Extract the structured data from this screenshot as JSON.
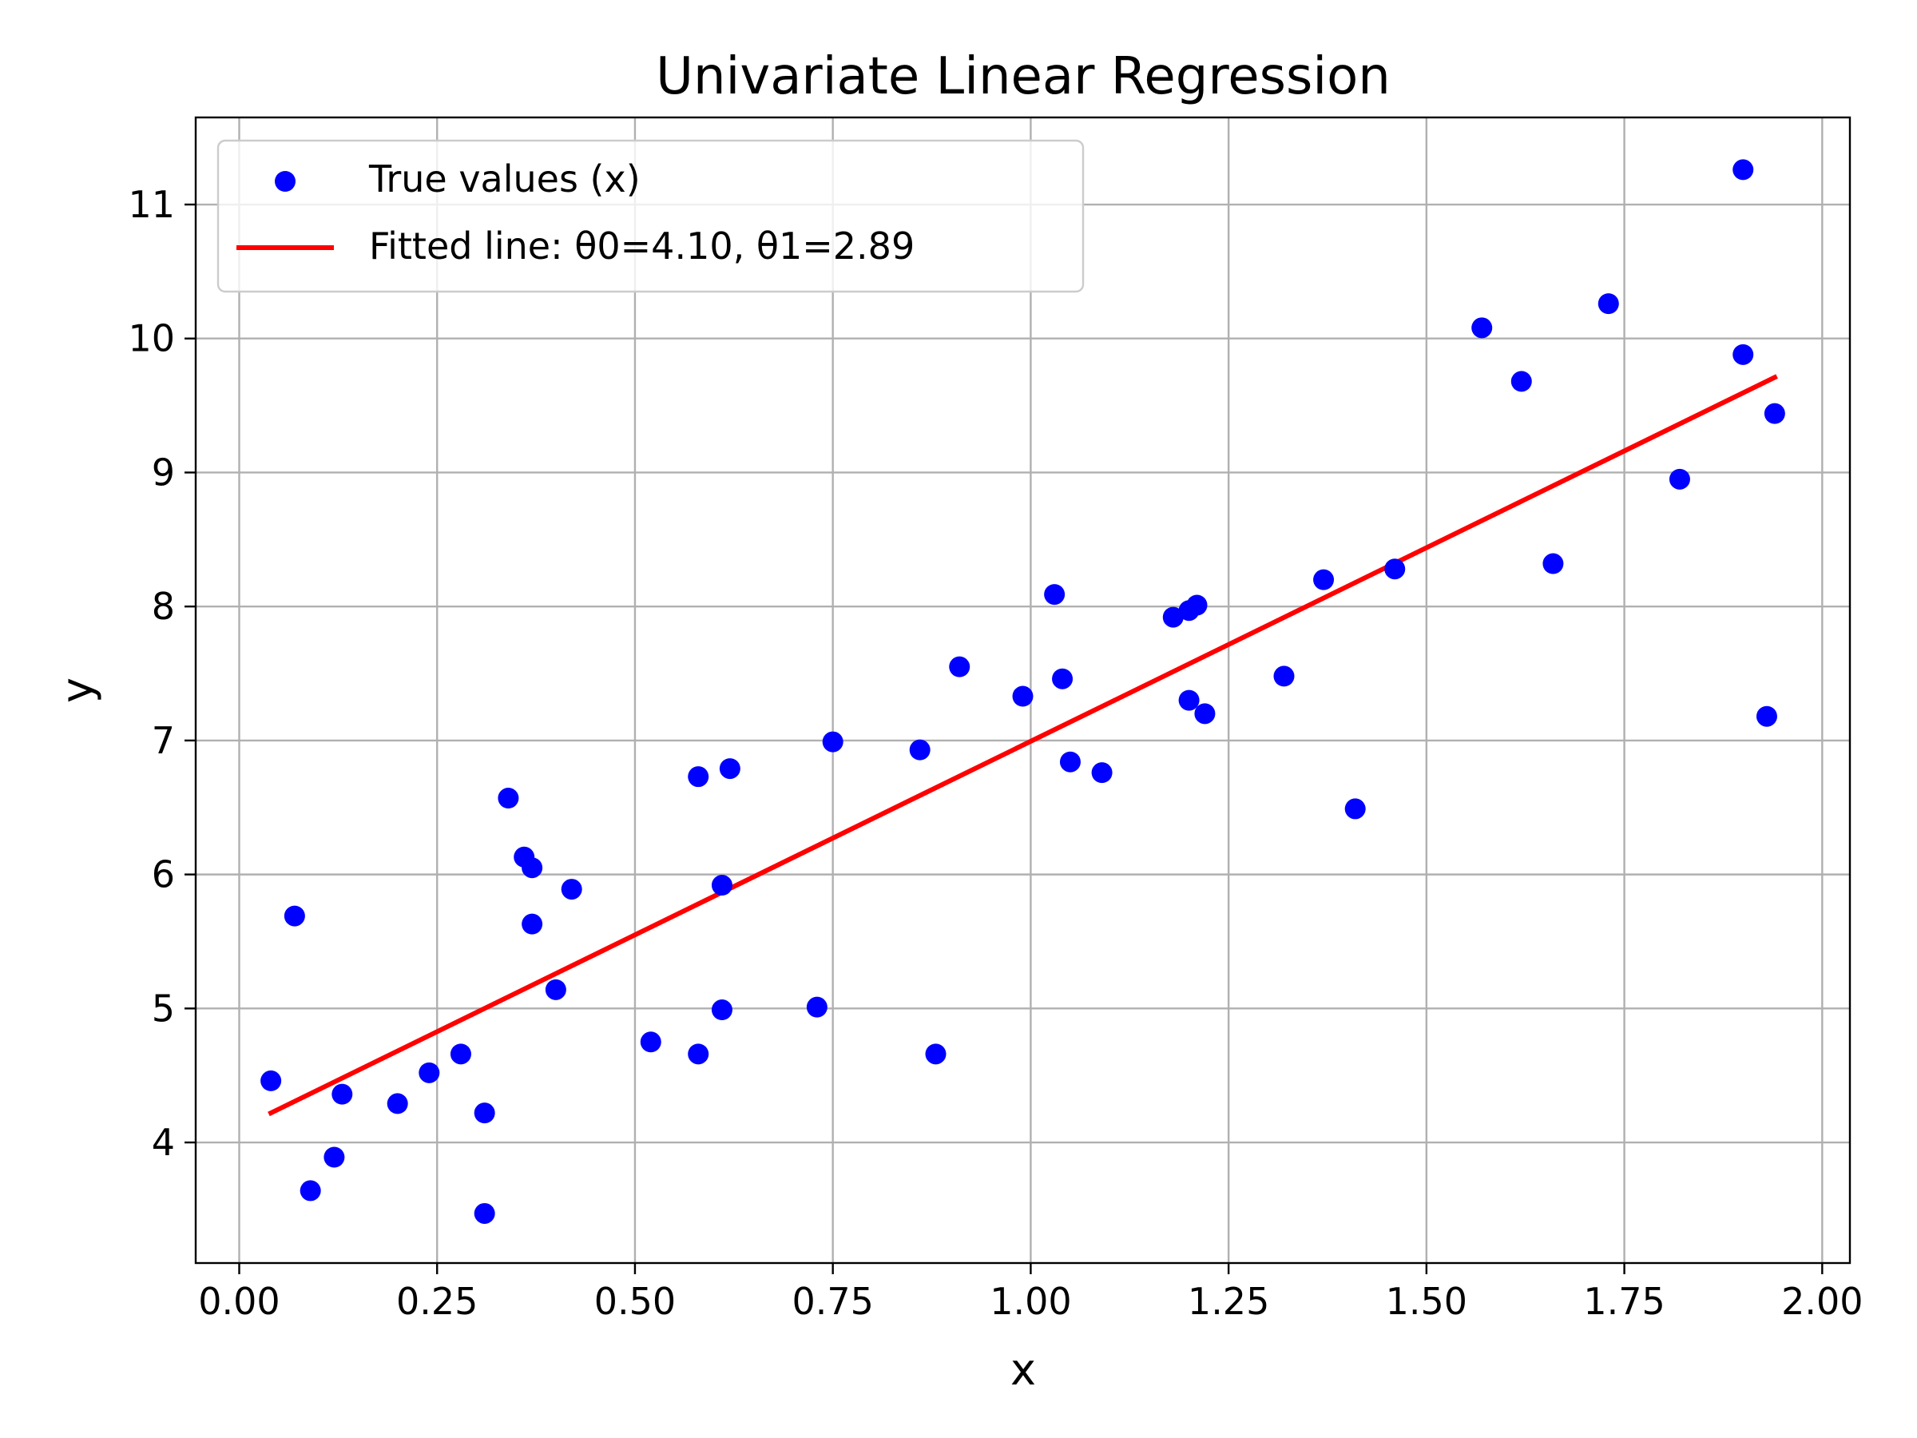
{
  "chart_data": {
    "type": "scatter",
    "title": "Univariate Linear Regression",
    "xlabel": "x",
    "ylabel": "y",
    "xlim": [
      -0.055,
      2.035
    ],
    "ylim": [
      3.1,
      11.65
    ],
    "grid": true,
    "legend_position": "top-left",
    "x_ticks": [
      0.0,
      0.25,
      0.5,
      0.75,
      1.0,
      1.25,
      1.5,
      1.75,
      2.0
    ],
    "x_tick_labels": [
      "0.00",
      "0.25",
      "0.50",
      "0.75",
      "1.00",
      "1.25",
      "1.50",
      "1.75",
      "2.00"
    ],
    "y_ticks": [
      4,
      5,
      6,
      7,
      8,
      9,
      10,
      11
    ],
    "y_tick_labels": [
      "4",
      "5",
      "6",
      "7",
      "8",
      "9",
      "10",
      "11"
    ],
    "series": [
      {
        "name": "True values (x)",
        "kind": "scatter",
        "color": "#0000ff",
        "points": [
          [
            0.04,
            4.46
          ],
          [
            0.07,
            5.69
          ],
          [
            0.09,
            3.64
          ],
          [
            0.12,
            3.89
          ],
          [
            0.13,
            4.36
          ],
          [
            0.2,
            4.29
          ],
          [
            0.24,
            4.52
          ],
          [
            0.28,
            4.66
          ],
          [
            0.31,
            4.22
          ],
          [
            0.31,
            3.47
          ],
          [
            0.34,
            6.57
          ],
          [
            0.36,
            6.13
          ],
          [
            0.37,
            6.05
          ],
          [
            0.37,
            5.63
          ],
          [
            0.4,
            5.14
          ],
          [
            0.42,
            5.89
          ],
          [
            0.52,
            4.75
          ],
          [
            0.58,
            6.73
          ],
          [
            0.58,
            4.66
          ],
          [
            0.61,
            5.92
          ],
          [
            0.61,
            4.99
          ],
          [
            0.62,
            6.79
          ],
          [
            0.73,
            5.01
          ],
          [
            0.75,
            6.99
          ],
          [
            0.86,
            6.93
          ],
          [
            0.88,
            4.66
          ],
          [
            0.91,
            7.55
          ],
          [
            0.99,
            7.33
          ],
          [
            1.03,
            8.09
          ],
          [
            1.04,
            7.46
          ],
          [
            1.05,
            6.84
          ],
          [
            1.09,
            6.76
          ],
          [
            1.18,
            7.92
          ],
          [
            1.2,
            7.3
          ],
          [
            1.2,
            7.97
          ],
          [
            1.21,
            8.01
          ],
          [
            1.22,
            7.2
          ],
          [
            1.32,
            7.48
          ],
          [
            1.37,
            8.2
          ],
          [
            1.41,
            6.49
          ],
          [
            1.46,
            8.28
          ],
          [
            1.57,
            10.08
          ],
          [
            1.62,
            9.68
          ],
          [
            1.66,
            8.32
          ],
          [
            1.73,
            10.26
          ],
          [
            1.82,
            8.95
          ],
          [
            1.9,
            11.26
          ],
          [
            1.9,
            9.88
          ],
          [
            1.93,
            7.18
          ],
          [
            1.94,
            9.44
          ]
        ]
      },
      {
        "name": "Fitted line: θ0=4.10, θ1=2.89",
        "kind": "line",
        "color": "#ff0000",
        "points": [
          [
            0.04,
            4.22
          ],
          [
            1.94,
            9.71
          ]
        ]
      }
    ]
  }
}
